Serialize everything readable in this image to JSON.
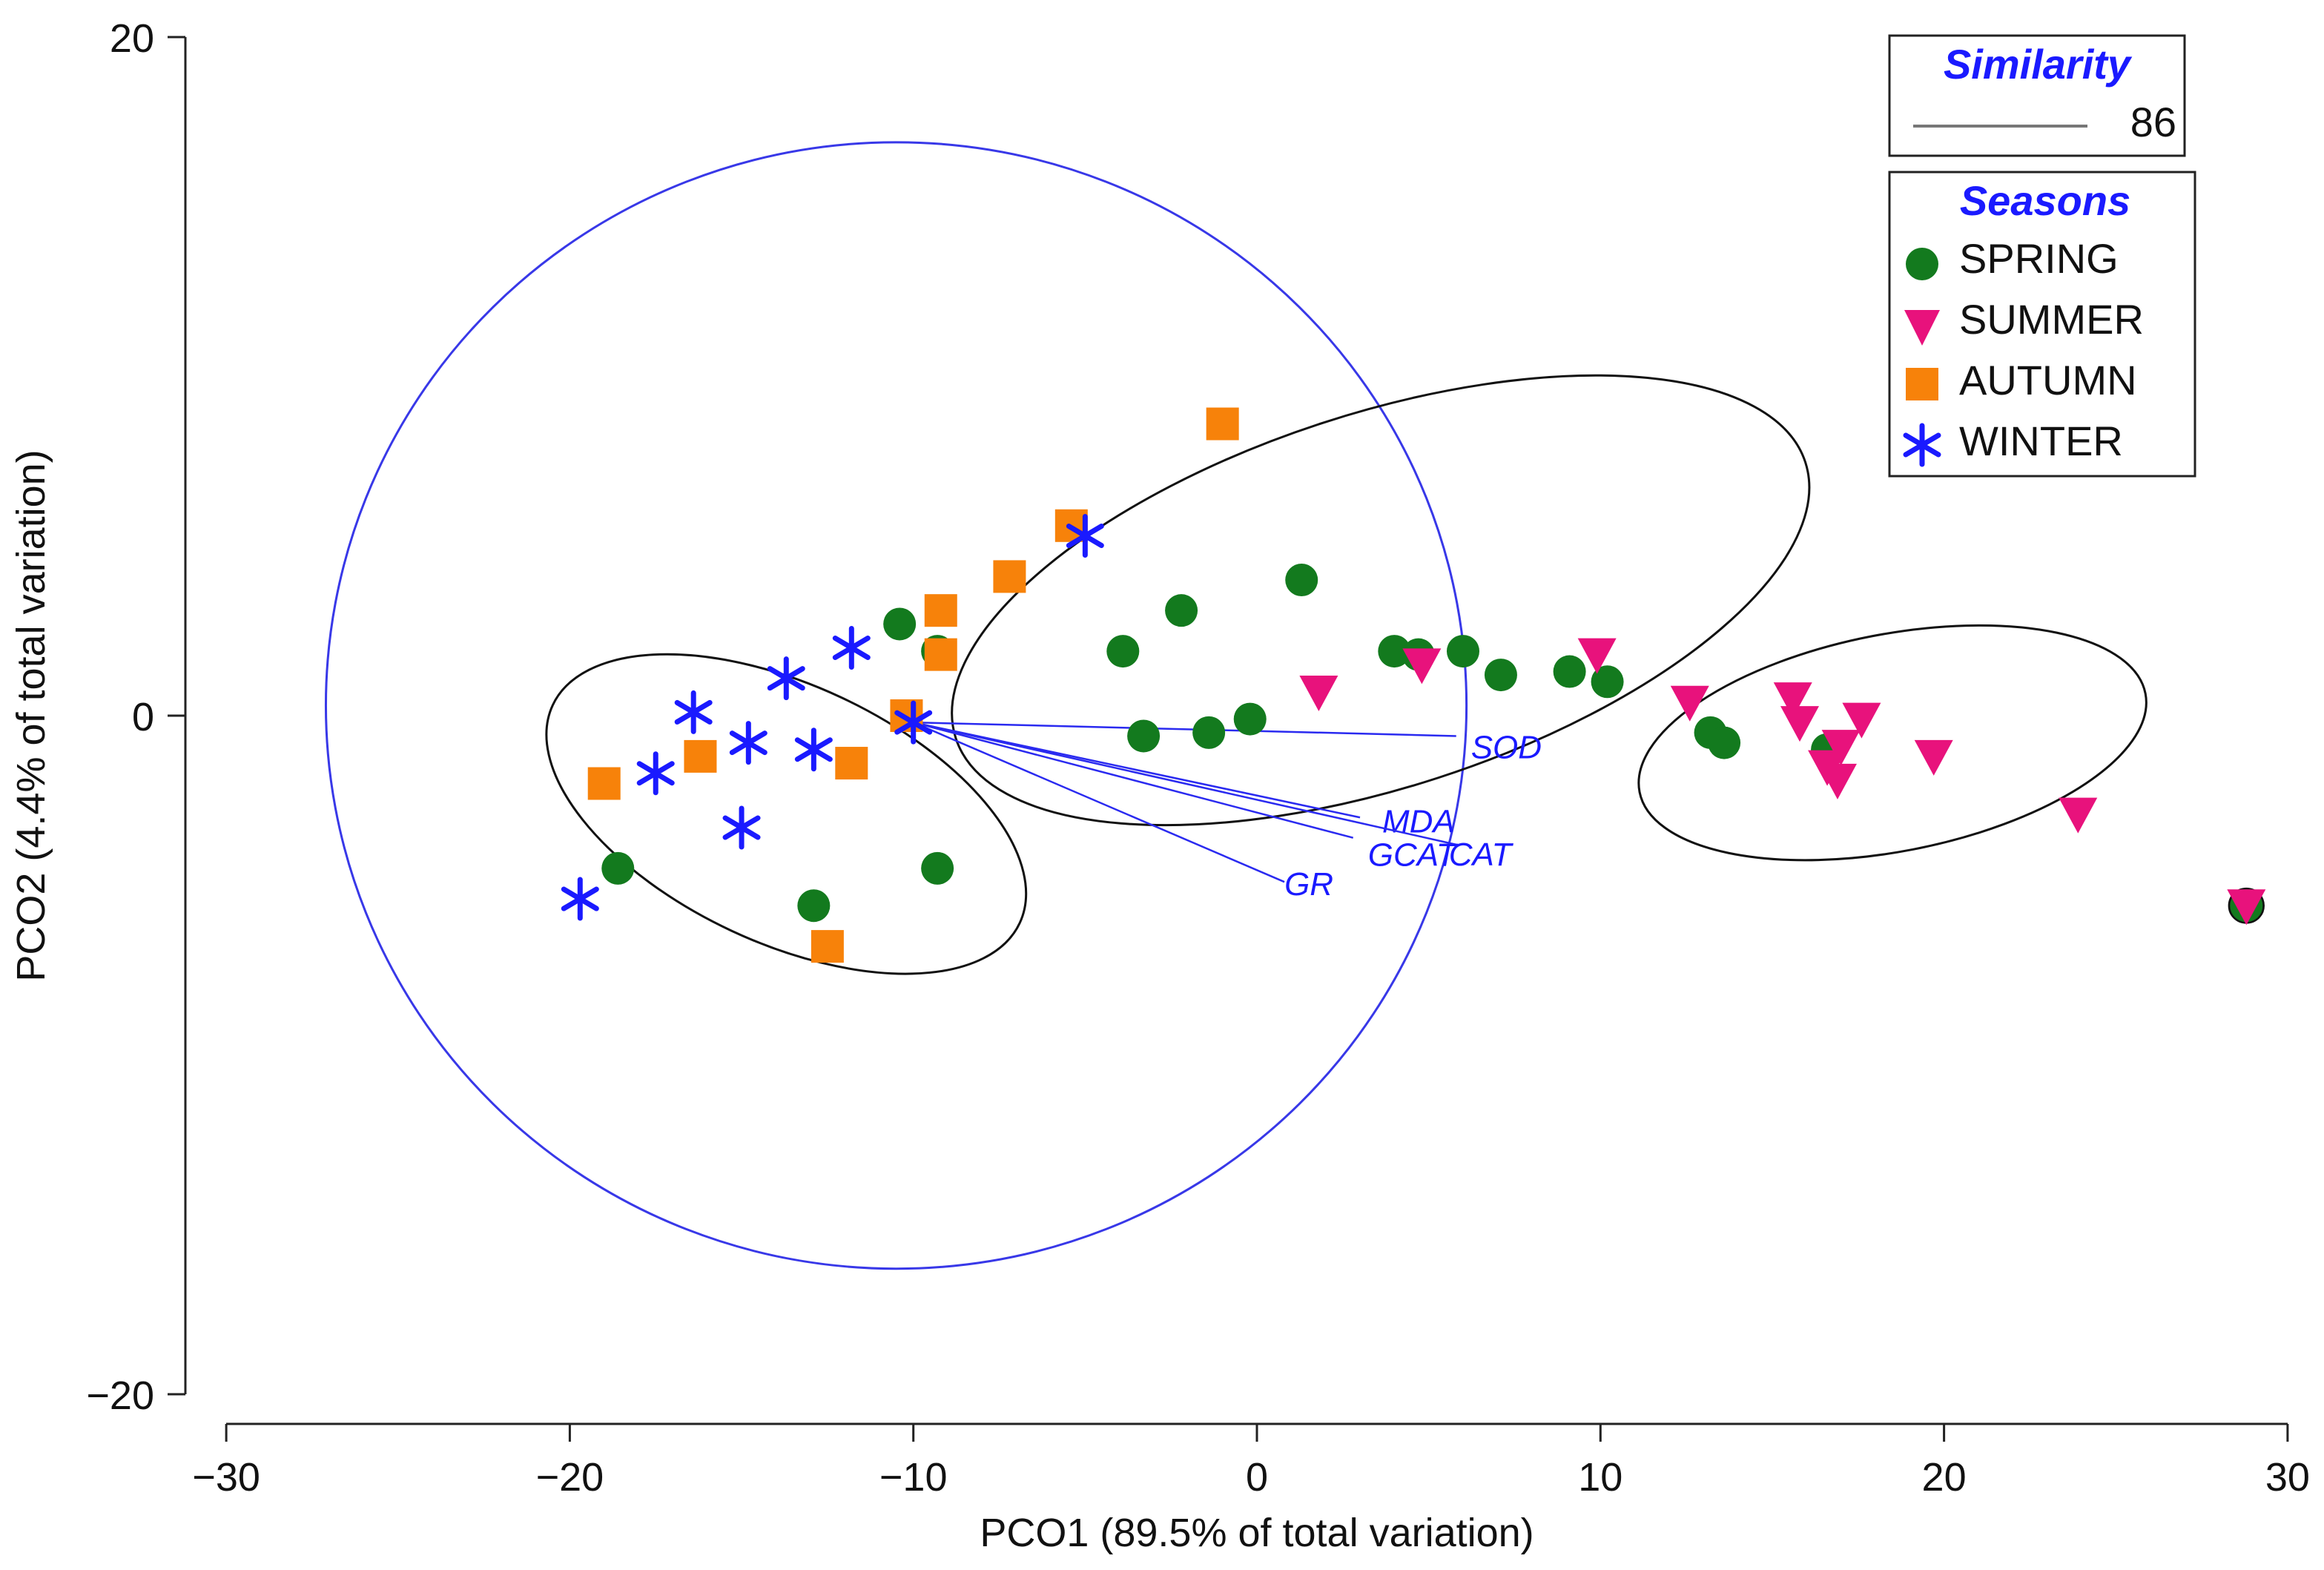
{
  "chart_data": {
    "type": "scatter",
    "xlabel": "PCO1 (89.5% of total variation)",
    "ylabel": "PCO2 (4.4% of total variation)",
    "xlim": [
      -30,
      30
    ],
    "ylim": [
      -20,
      20
    ],
    "x_ticks": [
      -30,
      -20,
      -10,
      0,
      10,
      20,
      30
    ],
    "y_ticks": [
      20,
      0,
      -20
    ],
    "x_tick_labels": [
      "−30",
      "−20",
      "−10",
      "0",
      "10",
      "20",
      "30"
    ],
    "y_tick_labels": [
      "20",
      "0",
      "−20"
    ],
    "series": [
      {
        "name": "SPRING",
        "marker": "circle",
        "color": "#137a1e",
        "points": [
          [
            -18.6,
            -4.5
          ],
          [
            -12.9,
            -5.6
          ],
          [
            -10.4,
            2.7
          ],
          [
            -9.3,
            1.9
          ],
          [
            -9.3,
            -4.5
          ],
          [
            -3.9,
            1.9
          ],
          [
            -3.3,
            -0.6
          ],
          [
            -2.2,
            3.1
          ],
          [
            -1.4,
            -0.5
          ],
          [
            -0.2,
            -0.1
          ],
          [
            1.3,
            4.0
          ],
          [
            4.0,
            1.9
          ],
          [
            4.7,
            1.8
          ],
          [
            6.0,
            1.9
          ],
          [
            7.1,
            1.2
          ],
          [
            9.1,
            1.3
          ],
          [
            10.2,
            1.0
          ],
          [
            13.2,
            -0.5
          ],
          [
            13.6,
            -0.8
          ],
          [
            16.6,
            -1.0
          ],
          [
            28.8,
            -5.6
          ]
        ]
      },
      {
        "name": "SUMMER",
        "marker": "triangle-down",
        "color": "#e8127c",
        "points": [
          [
            1.8,
            0.7
          ],
          [
            4.8,
            1.5
          ],
          [
            9.9,
            1.8
          ],
          [
            12.6,
            0.4
          ],
          [
            15.6,
            0.5
          ],
          [
            15.8,
            -0.2
          ],
          [
            16.6,
            -1.5
          ],
          [
            16.9,
            -1.9
          ],
          [
            17.0,
            -0.9
          ],
          [
            17.6,
            -0.1
          ],
          [
            19.7,
            -1.2
          ],
          [
            23.9,
            -2.9
          ],
          [
            28.8,
            -5.6
          ]
        ]
      },
      {
        "name": "AUTUMN",
        "marker": "square",
        "color": "#f7820a",
        "points": [
          [
            -19.0,
            -2.0
          ],
          [
            -16.2,
            -1.2
          ],
          [
            -12.5,
            -6.8
          ],
          [
            -11.8,
            -1.4
          ],
          [
            -10.2,
            0.0
          ],
          [
            -9.2,
            3.1
          ],
          [
            -9.2,
            1.8
          ],
          [
            -7.2,
            4.1
          ],
          [
            -5.4,
            5.6
          ],
          [
            -1.0,
            8.6
          ]
        ]
      },
      {
        "name": "WINTER",
        "marker": "asterisk",
        "color": "#1a1aff",
        "points": [
          [
            -19.7,
            -5.4
          ],
          [
            -17.5,
            -1.7
          ],
          [
            -16.4,
            0.1
          ],
          [
            -15.0,
            -3.3
          ],
          [
            -14.8,
            -0.8
          ],
          [
            -13.7,
            1.1
          ],
          [
            -12.9,
            -1.0
          ],
          [
            -11.8,
            2.0
          ],
          [
            -10.0,
            -0.2
          ],
          [
            -5.0,
            5.3
          ]
        ]
      }
    ],
    "vectors": [
      {
        "label": "SOD",
        "x": 5.8,
        "y": -0.6
      },
      {
        "label": "MDA",
        "x": 3.0,
        "y": -3.0
      },
      {
        "label": "CAT",
        "x": 5.8,
        "y": -3.8
      },
      {
        "label": "GCAT",
        "x": 2.8,
        "y": -3.6
      },
      {
        "label": "GR",
        "x": 0.8,
        "y": -4.9
      }
    ],
    "vector_origin": [
      -10.0,
      -0.2
    ],
    "vector_circle": {
      "cx": -10.5,
      "cy": 0.3,
      "r": 16.6
    },
    "similarity_ellipses": [
      {
        "cx": -13.7,
        "cy": -2.9,
        "rx": 7.5,
        "ry": 3.8,
        "rotate": -25
      },
      {
        "cx": 3.6,
        "cy": 3.4,
        "rx": 13.0,
        "ry": 5.5,
        "rotate": 18
      },
      {
        "cx": 18.5,
        "cy": -0.8,
        "rx": 7.5,
        "ry": 3.2,
        "rotate": 11
      },
      {
        "cx": 28.8,
        "cy": -5.6,
        "rx": 0.5,
        "ry": 0.5,
        "rotate": 0
      }
    ]
  },
  "legend": {
    "similarity_title": "Similarity",
    "similarity_value": "86",
    "seasons_title": "Seasons",
    "items": [
      "SPRING",
      "SUMMER",
      "AUTUMN",
      "WINTER"
    ]
  }
}
